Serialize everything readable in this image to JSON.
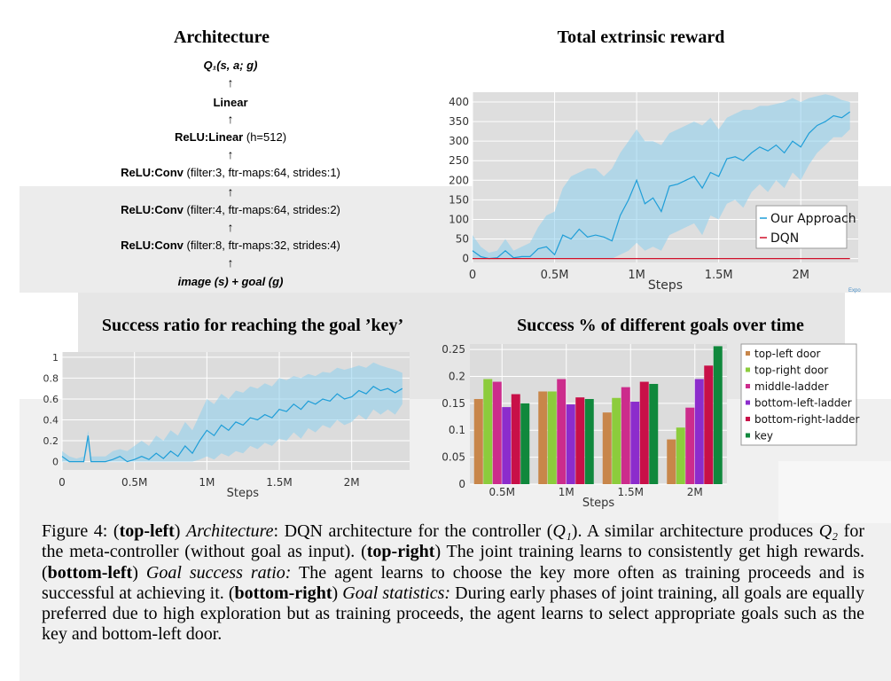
{
  "architecture": {
    "title": "Architecture",
    "output": "Q₁(s, a; g)",
    "layers": [
      {
        "bold": "Linear",
        "params": ""
      },
      {
        "bold": "ReLU:Linear",
        "params": " (h=512)"
      },
      {
        "bold": "ReLU:Conv",
        "params": " (filter:3, ftr-maps:64, strides:1)"
      },
      {
        "bold": "ReLU:Conv",
        "params": " (filter:4, ftr-maps:64, strides:2)"
      },
      {
        "bold": "ReLU:Conv",
        "params": " (filter:8, ftr-maps:32, strides:4)"
      }
    ],
    "input": "image (s) + goal (g)"
  },
  "epo_label": "Expo",
  "caption": {
    "figure_label": "Figure 4:",
    "tl_label": "top-left",
    "tl_name": "Architecture",
    "tl_text_1": ": DQN architecture for the controller (",
    "tl_q1": "Q₁",
    "tl_text_2": "). A similar architecture produces ",
    "tl_q2": "Q₂",
    "tl_text_3": " for the meta-controller (without goal as input). (",
    "tr_label": "top-right",
    "tr_text": ") The joint training learns to consistently get high rewards. (",
    "bl_label": "bottom-left",
    "bl_text_1": ") ",
    "bl_name": "Goal success ratio:",
    "bl_text_2": " The agent learns to choose the key more often as training proceeds and is successful at achieving it. (",
    "br_label": "bottom-right",
    "br_text_1": ") ",
    "br_name": "Goal statistics:",
    "br_text_2": " During early phases of joint training, all goals are equally preferred due to high exploration but as training proceeds, the agent learns to select appropriate goals such as the key and bottom-left door."
  },
  "chart_data": [
    {
      "type": "line",
      "title": "Total extrinsic reward",
      "xlabel": "Steps",
      "ylabel": "",
      "xlim": [
        0,
        2.35
      ],
      "ylim": [
        -10,
        425
      ],
      "x_ticks": [
        "0",
        "0.5M",
        "1M",
        "1.5M",
        "2M"
      ],
      "x_tick_values": [
        0,
        0.5,
        1,
        1.5,
        2
      ],
      "y_ticks": [
        0,
        50,
        100,
        150,
        200,
        250,
        300,
        350,
        400
      ],
      "legend_position": "bottom-right",
      "series": [
        {
          "name": "Our Approach",
          "color": "#1f9ed8",
          "x": [
            0,
            0.05,
            0.1,
            0.15,
            0.2,
            0.25,
            0.3,
            0.35,
            0.4,
            0.45,
            0.5,
            0.55,
            0.6,
            0.65,
            0.7,
            0.75,
            0.8,
            0.85,
            0.9,
            0.95,
            1.0,
            1.05,
            1.1,
            1.15,
            1.2,
            1.25,
            1.3,
            1.35,
            1.4,
            1.45,
            1.5,
            1.55,
            1.6,
            1.65,
            1.7,
            1.75,
            1.8,
            1.85,
            1.9,
            1.95,
            2.0,
            2.05,
            2.1,
            2.15,
            2.2,
            2.25,
            2.3
          ],
          "values": [
            20,
            5,
            0,
            2,
            20,
            2,
            5,
            5,
            25,
            30,
            10,
            60,
            50,
            75,
            55,
            60,
            55,
            45,
            110,
            150,
            200,
            140,
            155,
            120,
            185,
            190,
            200,
            210,
            180,
            220,
            210,
            255,
            260,
            250,
            270,
            285,
            275,
            290,
            270,
            300,
            285,
            320,
            340,
            350,
            365,
            360,
            375
          ],
          "band_upper": [
            60,
            30,
            15,
            20,
            50,
            20,
            30,
            40,
            80,
            110,
            120,
            180,
            210,
            220,
            230,
            230,
            210,
            230,
            270,
            300,
            330,
            300,
            300,
            290,
            320,
            330,
            340,
            350,
            340,
            360,
            330,
            360,
            370,
            380,
            380,
            390,
            390,
            395,
            400,
            410,
            400,
            410,
            415,
            420,
            415,
            405,
            400
          ],
          "band_lower": [
            0,
            0,
            0,
            0,
            0,
            0,
            0,
            0,
            0,
            0,
            0,
            0,
            0,
            0,
            0,
            0,
            0,
            0,
            10,
            20,
            40,
            20,
            30,
            20,
            60,
            70,
            80,
            90,
            60,
            110,
            100,
            140,
            150,
            130,
            170,
            190,
            170,
            200,
            180,
            220,
            200,
            240,
            270,
            290,
            310,
            310,
            330
          ]
        },
        {
          "name": "DQN",
          "color": "#d0102a",
          "x": [
            0,
            2.3
          ],
          "values": [
            0,
            0
          ]
        }
      ]
    },
    {
      "type": "line",
      "title": "Success ratio for reaching the goal ’key’",
      "xlabel": "Steps",
      "ylabel": "",
      "xlim": [
        0,
        2.4
      ],
      "ylim": [
        -0.08,
        1.05
      ],
      "x_ticks": [
        "0",
        "0.5M",
        "1M",
        "1.5M",
        "2M"
      ],
      "x_tick_values": [
        0,
        0.5,
        1,
        1.5,
        2
      ],
      "y_ticks": [
        "0",
        "0.2",
        "0.4",
        "0.6",
        "0.8",
        "1"
      ],
      "y_tick_values": [
        0,
        0.2,
        0.4,
        0.6,
        0.8,
        1
      ],
      "series": [
        {
          "name": "",
          "color": "#1f9ed8",
          "x": [
            0,
            0.05,
            0.1,
            0.15,
            0.18,
            0.2,
            0.25,
            0.3,
            0.35,
            0.4,
            0.45,
            0.5,
            0.55,
            0.6,
            0.65,
            0.7,
            0.75,
            0.8,
            0.85,
            0.9,
            0.95,
            1.0,
            1.05,
            1.1,
            1.15,
            1.2,
            1.25,
            1.3,
            1.35,
            1.4,
            1.45,
            1.5,
            1.55,
            1.6,
            1.65,
            1.7,
            1.75,
            1.8,
            1.85,
            1.9,
            1.95,
            2.0,
            2.05,
            2.1,
            2.15,
            2.2,
            2.25,
            2.3,
            2.35
          ],
          "values": [
            0.05,
            0.0,
            0.0,
            0.0,
            0.25,
            0.0,
            0.0,
            0.0,
            0.02,
            0.05,
            0.0,
            0.02,
            0.05,
            0.02,
            0.08,
            0.03,
            0.1,
            0.05,
            0.15,
            0.08,
            0.2,
            0.3,
            0.25,
            0.35,
            0.3,
            0.38,
            0.35,
            0.42,
            0.4,
            0.45,
            0.42,
            0.5,
            0.48,
            0.55,
            0.5,
            0.58,
            0.55,
            0.6,
            0.58,
            0.65,
            0.6,
            0.62,
            0.68,
            0.65,
            0.72,
            0.68,
            0.7,
            0.66,
            0.7
          ],
          "band_upper": [
            0.1,
            0.05,
            0.03,
            0.05,
            0.3,
            0.05,
            0.05,
            0.05,
            0.1,
            0.12,
            0.1,
            0.15,
            0.2,
            0.15,
            0.25,
            0.2,
            0.3,
            0.25,
            0.38,
            0.3,
            0.45,
            0.6,
            0.55,
            0.65,
            0.6,
            0.68,
            0.66,
            0.72,
            0.7,
            0.75,
            0.72,
            0.8,
            0.78,
            0.82,
            0.8,
            0.84,
            0.82,
            0.86,
            0.85,
            0.9,
            0.88,
            0.9,
            0.92,
            0.9,
            0.95,
            0.92,
            0.9,
            0.88,
            0.85
          ],
          "band_lower": [
            0.0,
            0.0,
            0.0,
            0.0,
            0.15,
            0.0,
            0.0,
            0.0,
            0.0,
            0.0,
            0.0,
            0.0,
            0.0,
            0.0,
            0.0,
            0.0,
            0.0,
            0.0,
            0.0,
            0.0,
            0.02,
            0.05,
            0.02,
            0.08,
            0.05,
            0.1,
            0.08,
            0.15,
            0.12,
            0.18,
            0.15,
            0.22,
            0.2,
            0.28,
            0.22,
            0.32,
            0.28,
            0.35,
            0.32,
            0.4,
            0.35,
            0.38,
            0.45,
            0.4,
            0.5,
            0.45,
            0.5,
            0.45,
            0.55
          ]
        }
      ]
    },
    {
      "type": "bar",
      "title": "Success % of different goals over time",
      "xlabel": "Steps",
      "ylabel": "",
      "categories": [
        "0.5M",
        "1M",
        "1.5M",
        "2M"
      ],
      "ylim": [
        0,
        0.26
      ],
      "y_ticks": [
        "0",
        "0.05",
        "0.1",
        "0.15",
        "0.2",
        "0.25"
      ],
      "y_tick_values": [
        0,
        0.05,
        0.1,
        0.15,
        0.2,
        0.25
      ],
      "legend_position": "top-right",
      "series": [
        {
          "name": "top-left door",
          "color": "#c8864a",
          "values": [
            0.158,
            0.172,
            0.133,
            0.083
          ]
        },
        {
          "name": "top-right door",
          "color": "#8ccc3c",
          "values": [
            0.195,
            0.172,
            0.16,
            0.105
          ]
        },
        {
          "name": "middle-ladder",
          "color": "#cc2c8c",
          "values": [
            0.19,
            0.195,
            0.18,
            0.142
          ]
        },
        {
          "name": "bottom-left-ladder",
          "color": "#8c2ccc",
          "values": [
            0.143,
            0.148,
            0.153,
            0.195
          ]
        },
        {
          "name": "bottom-right-ladder",
          "color": "#c81048",
          "values": [
            0.167,
            0.161,
            0.19,
            0.22
          ]
        },
        {
          "name": "key",
          "color": "#10883c",
          "values": [
            0.15,
            0.158,
            0.186,
            0.256
          ]
        }
      ]
    }
  ]
}
